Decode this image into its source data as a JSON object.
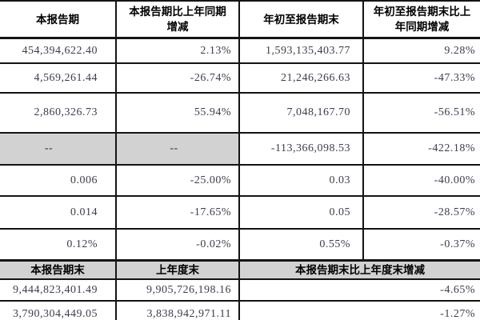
{
  "table": {
    "sections": [
      {
        "headers": [
          "本报告期",
          "本报告期比上年同期增减",
          "年初至报告期末",
          "年初至报告期末比上年同期增减"
        ],
        "rows": [
          [
            "454,394,622.40",
            "2.13%",
            "1,593,135,403.77",
            "9.28%"
          ],
          [
            "4,569,261.44",
            "-26.74%",
            "21,246,266.63",
            "-47.33%"
          ],
          [
            "2,860,326.73",
            "55.94%",
            "7,048,167.70",
            "-56.51%"
          ],
          [
            "--",
            "--",
            "-113,366,098.53",
            "-422.18%"
          ],
          [
            "0.006",
            "-25.00%",
            "0.03",
            "-40.00%"
          ],
          [
            "0.014",
            "-17.65%",
            "0.05",
            "-28.57%"
          ],
          [
            "0.12%",
            "-0.02%",
            "0.55%",
            "-0.37%"
          ]
        ]
      },
      {
        "headers": [
          "本报告期末",
          "上年度末",
          "本报告期末比上年度末增减"
        ],
        "rows": [
          [
            "9,444,823,401.49",
            "9,905,726,198.16",
            "-4.65%"
          ],
          [
            "3,790,304,449.05",
            "3,838,942,971.11",
            "-1.27%"
          ]
        ]
      }
    ],
    "placeholder": "--",
    "colors": {
      "border": "#141414",
      "gray_cell": "#d2d2d2",
      "header_text": "#000000",
      "value_text": "#3d3d4d",
      "partial_row": "#e6e6e6"
    }
  }
}
